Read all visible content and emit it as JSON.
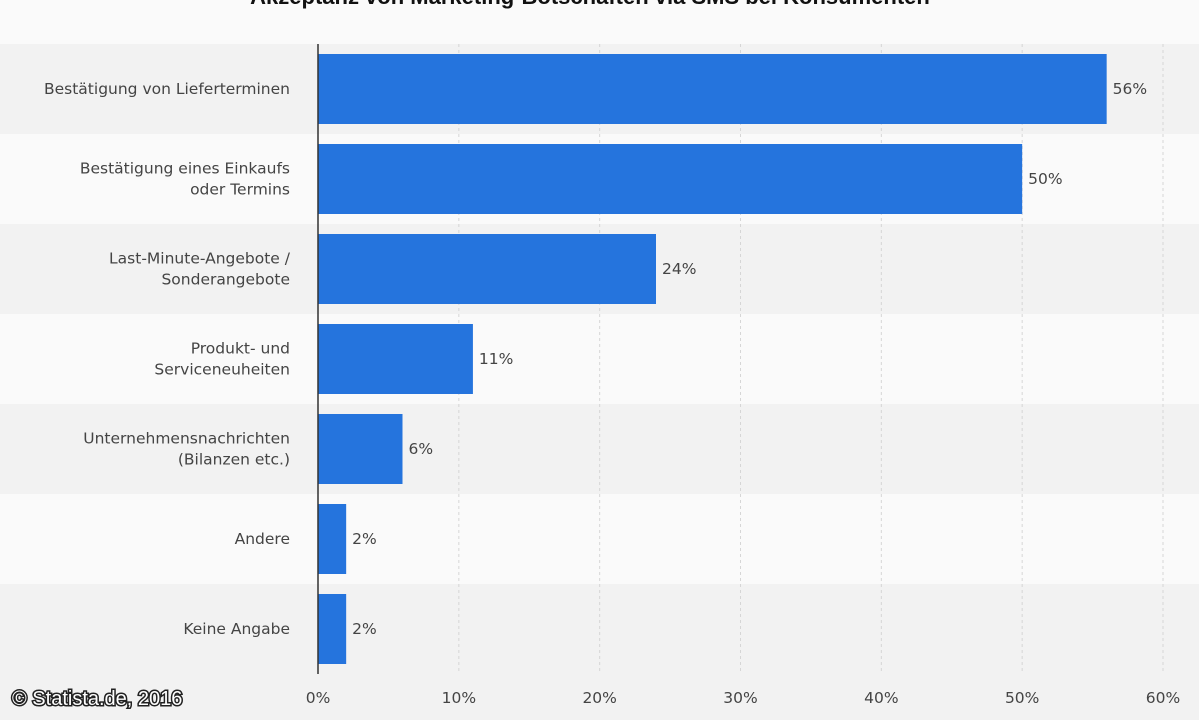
{
  "credit": "© Statista.de, 2016",
  "colors": {
    "bar": "#2574dd",
    "band_dark": "#f2f2f2",
    "band_light": "#fafafa",
    "grid": "#d6d6d6",
    "axis": "#333333"
  },
  "chart_data": {
    "type": "bar",
    "orientation": "horizontal",
    "title": "Akzeptanz von Marketing-Botschaften via SMS bei Konsumenten",
    "categories": [
      [
        "Bestätigung von Lieferterminen"
      ],
      [
        "Bestätigung eines Einkaufs",
        "oder Termins"
      ],
      [
        "Last-Minute-Angebote /",
        "Sonderangebote"
      ],
      [
        "Produkt- und",
        "Serviceneuheiten"
      ],
      [
        "Unternehmensnachrichten",
        "(Bilanzen etc.)"
      ],
      [
        "Andere"
      ],
      [
        "Keine Angabe"
      ]
    ],
    "values": [
      56,
      50,
      24,
      11,
      6,
      2,
      2
    ],
    "value_labels": [
      "56%",
      "50%",
      "24%",
      "11%",
      "6%",
      "2%",
      "2%"
    ],
    "xlim": [
      0,
      60
    ],
    "x_ticks": [
      0,
      10,
      20,
      30,
      40,
      50,
      60
    ],
    "x_tick_labels": [
      "0%",
      "10%",
      "20%",
      "30%",
      "40%",
      "50%",
      "60%"
    ],
    "grid": true
  }
}
